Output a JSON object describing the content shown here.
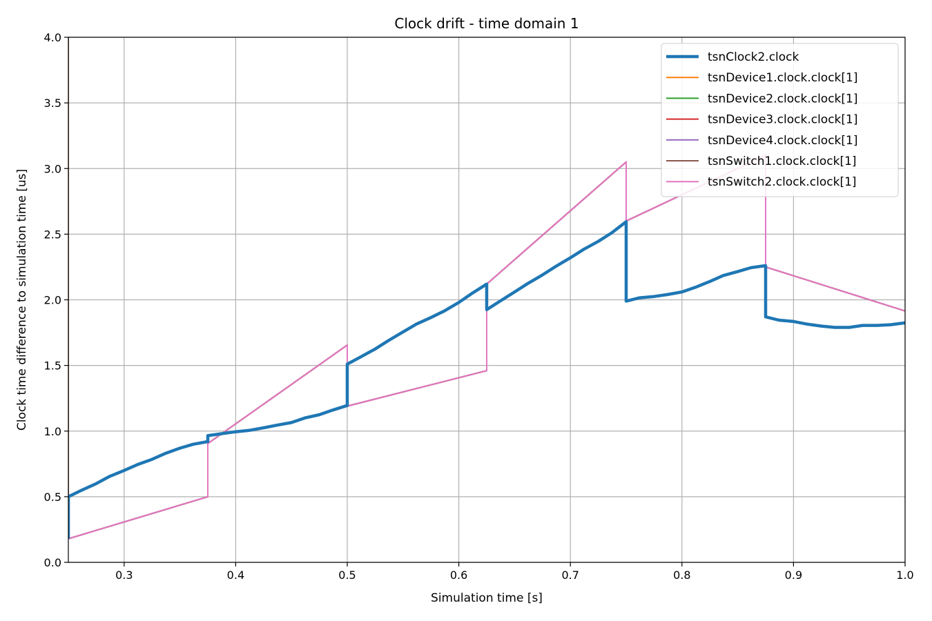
{
  "chart_data": {
    "type": "line",
    "title": "Clock drift - time domain 1",
    "xlabel": "Simulation time [s]",
    "ylabel": "Clock time difference to simulation time [us]",
    "xlim": [
      0.25,
      1.0
    ],
    "ylim": [
      0.0,
      4.0
    ],
    "xticks": [
      0.3,
      0.4,
      0.5,
      0.6,
      0.7,
      0.8,
      0.9,
      1.0
    ],
    "xtick_labels": [
      "0.3",
      "0.4",
      "0.5",
      "0.6",
      "0.7",
      "0.8",
      "0.9",
      "1.0"
    ],
    "yticks": [
      0.0,
      0.5,
      1.0,
      1.5,
      2.0,
      2.5,
      3.0,
      3.5,
      4.0
    ],
    "ytick_labels": [
      "0.0",
      "0.5",
      "1.0",
      "1.5",
      "2.0",
      "2.5",
      "3.0",
      "3.5",
      "4.0"
    ],
    "grid": true,
    "legend_position": "top-right",
    "series": [
      {
        "name": "tsnClock2.clock",
        "color": "#1f77b4",
        "width": "thick",
        "points": [
          [
            0.25,
            0.18
          ],
          [
            0.25,
            0.5
          ],
          [
            0.262,
            0.55
          ],
          [
            0.275,
            0.6
          ],
          [
            0.287,
            0.655
          ],
          [
            0.3,
            0.7
          ],
          [
            0.312,
            0.745
          ],
          [
            0.325,
            0.785
          ],
          [
            0.337,
            0.83
          ],
          [
            0.35,
            0.87
          ],
          [
            0.362,
            0.9
          ],
          [
            0.375,
            0.92
          ],
          [
            0.375,
            0.965
          ],
          [
            0.387,
            0.98
          ],
          [
            0.4,
            0.995
          ],
          [
            0.412,
            1.005
          ],
          [
            0.425,
            1.025
          ],
          [
            0.437,
            1.045
          ],
          [
            0.45,
            1.065
          ],
          [
            0.462,
            1.1
          ],
          [
            0.475,
            1.125
          ],
          [
            0.487,
            1.16
          ],
          [
            0.5,
            1.195
          ],
          [
            0.5,
            1.51
          ],
          [
            0.512,
            1.565
          ],
          [
            0.525,
            1.625
          ],
          [
            0.537,
            1.69
          ],
          [
            0.55,
            1.755
          ],
          [
            0.562,
            1.815
          ],
          [
            0.575,
            1.865
          ],
          [
            0.587,
            1.915
          ],
          [
            0.6,
            1.98
          ],
          [
            0.612,
            2.05
          ],
          [
            0.625,
            2.12
          ],
          [
            0.625,
            1.925
          ],
          [
            0.637,
            1.99
          ],
          [
            0.65,
            2.06
          ],
          [
            0.662,
            2.125
          ],
          [
            0.675,
            2.19
          ],
          [
            0.687,
            2.255
          ],
          [
            0.7,
            2.32
          ],
          [
            0.712,
            2.385
          ],
          [
            0.725,
            2.445
          ],
          [
            0.737,
            2.51
          ],
          [
            0.75,
            2.595
          ],
          [
            0.75,
            1.99
          ],
          [
            0.762,
            2.015
          ],
          [
            0.775,
            2.025
          ],
          [
            0.787,
            2.04
          ],
          [
            0.8,
            2.06
          ],
          [
            0.812,
            2.095
          ],
          [
            0.825,
            2.14
          ],
          [
            0.837,
            2.185
          ],
          [
            0.85,
            2.215
          ],
          [
            0.862,
            2.245
          ],
          [
            0.875,
            2.26
          ],
          [
            0.875,
            1.87
          ],
          [
            0.887,
            1.845
          ],
          [
            0.9,
            1.835
          ],
          [
            0.912,
            1.815
          ],
          [
            0.925,
            1.8
          ],
          [
            0.937,
            1.79
          ],
          [
            0.95,
            1.79
          ],
          [
            0.962,
            1.805
          ],
          [
            0.975,
            1.805
          ],
          [
            0.987,
            1.81
          ],
          [
            1.0,
            1.825
          ]
        ]
      },
      {
        "name": "tsnDevice1.clock.clock[1]",
        "color": "#ff7f0e",
        "width": "thin",
        "points": [
          [
            0.25,
            2.18
          ],
          [
            0.25,
            0.18
          ],
          [
            0.375,
            0.5
          ],
          [
            0.375,
            0.905
          ],
          [
            0.5,
            1.655
          ],
          [
            0.5,
            1.19
          ],
          [
            0.625,
            1.46
          ],
          [
            0.625,
            2.12
          ],
          [
            0.75,
            3.05
          ],
          [
            0.75,
            2.6
          ],
          [
            0.875,
            3.1
          ],
          [
            0.875,
            2.25
          ],
          [
            1.0,
            1.915
          ]
        ]
      },
      {
        "name": "tsnDevice2.clock.clock[1]",
        "color": "#2ca02c",
        "width": "thin",
        "points": [
          [
            0.25,
            2.18
          ],
          [
            0.25,
            0.18
          ],
          [
            0.375,
            0.5
          ],
          [
            0.375,
            0.905
          ],
          [
            0.5,
            1.655
          ],
          [
            0.5,
            1.19
          ],
          [
            0.625,
            1.46
          ],
          [
            0.625,
            2.12
          ],
          [
            0.75,
            3.05
          ],
          [
            0.75,
            2.6
          ],
          [
            0.875,
            3.1
          ],
          [
            0.875,
            2.25
          ],
          [
            1.0,
            1.915
          ]
        ]
      },
      {
        "name": "tsnDevice3.clock.clock[1]",
        "color": "#d62728",
        "width": "thin",
        "points": [
          [
            0.25,
            2.18
          ],
          [
            0.25,
            0.18
          ],
          [
            0.375,
            0.5
          ],
          [
            0.375,
            0.905
          ],
          [
            0.5,
            1.655
          ],
          [
            0.5,
            1.19
          ],
          [
            0.625,
            1.46
          ],
          [
            0.625,
            2.12
          ],
          [
            0.75,
            3.05
          ],
          [
            0.75,
            2.6
          ],
          [
            0.875,
            3.1
          ],
          [
            0.875,
            2.25
          ],
          [
            1.0,
            1.915
          ]
        ]
      },
      {
        "name": "tsnDevice4.clock.clock[1]",
        "color": "#9467bd",
        "width": "thin",
        "points": [
          [
            0.25,
            0.18
          ],
          [
            0.375,
            0.5
          ],
          [
            0.375,
            0.905
          ],
          [
            0.5,
            1.655
          ],
          [
            0.5,
            1.5
          ],
          [
            0.5,
            1.19
          ],
          [
            0.625,
            1.46
          ],
          [
            0.625,
            1.92
          ],
          [
            0.625,
            2.12
          ],
          [
            0.75,
            3.05
          ],
          [
            0.75,
            2.6
          ],
          [
            0.875,
            3.1
          ],
          [
            0.875,
            2.25
          ],
          [
            1.0,
            1.915
          ]
        ]
      },
      {
        "name": "tsnSwitch1.clock.clock[1]",
        "color": "#8c564b",
        "width": "thin",
        "points": [
          [
            0.25,
            4.0
          ],
          [
            0.25,
            0.18
          ],
          [
            0.375,
            0.5
          ],
          [
            0.375,
            0.905
          ],
          [
            0.5,
            1.655
          ],
          [
            0.5,
            1.19
          ],
          [
            0.625,
            1.46
          ],
          [
            0.625,
            2.12
          ],
          [
            0.75,
            3.05
          ],
          [
            0.75,
            2.6
          ],
          [
            0.875,
            3.1
          ],
          [
            0.875,
            2.25
          ],
          [
            1.0,
            1.915
          ]
        ]
      },
      {
        "name": "tsnSwitch2.clock.clock[1]",
        "color": "#e377c2",
        "width": "thin",
        "points": [
          [
            0.25,
            0.18
          ],
          [
            0.375,
            0.5
          ],
          [
            0.375,
            0.905
          ],
          [
            0.5,
            1.655
          ],
          [
            0.5,
            1.19
          ],
          [
            0.625,
            1.46
          ],
          [
            0.625,
            2.12
          ],
          [
            0.75,
            3.05
          ],
          [
            0.75,
            2.6
          ],
          [
            0.875,
            3.1
          ],
          [
            0.875,
            2.25
          ],
          [
            1.0,
            1.915
          ]
        ]
      }
    ]
  }
}
